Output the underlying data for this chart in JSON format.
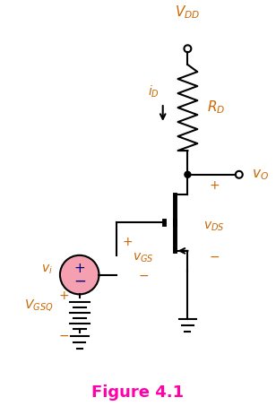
{
  "title": "Figure 4.1",
  "title_color": "#FF00AA",
  "title_fontsize": 13,
  "wire_color": "#000000",
  "text_color": "#CC6600",
  "bg_color": "#ffffff",
  "vdd_label": "$V_{DD}$",
  "rd_label": "$R_D$",
  "id_label": "$i_D$",
  "vo_label": "$v_O$",
  "vds_label": "$v_{DS}$",
  "vgs_label": "$v_{GS}$",
  "vi_label": "$v_i$",
  "vgsq_label": "$V_{GSQ}$",
  "plus": "+",
  "minus": "−"
}
